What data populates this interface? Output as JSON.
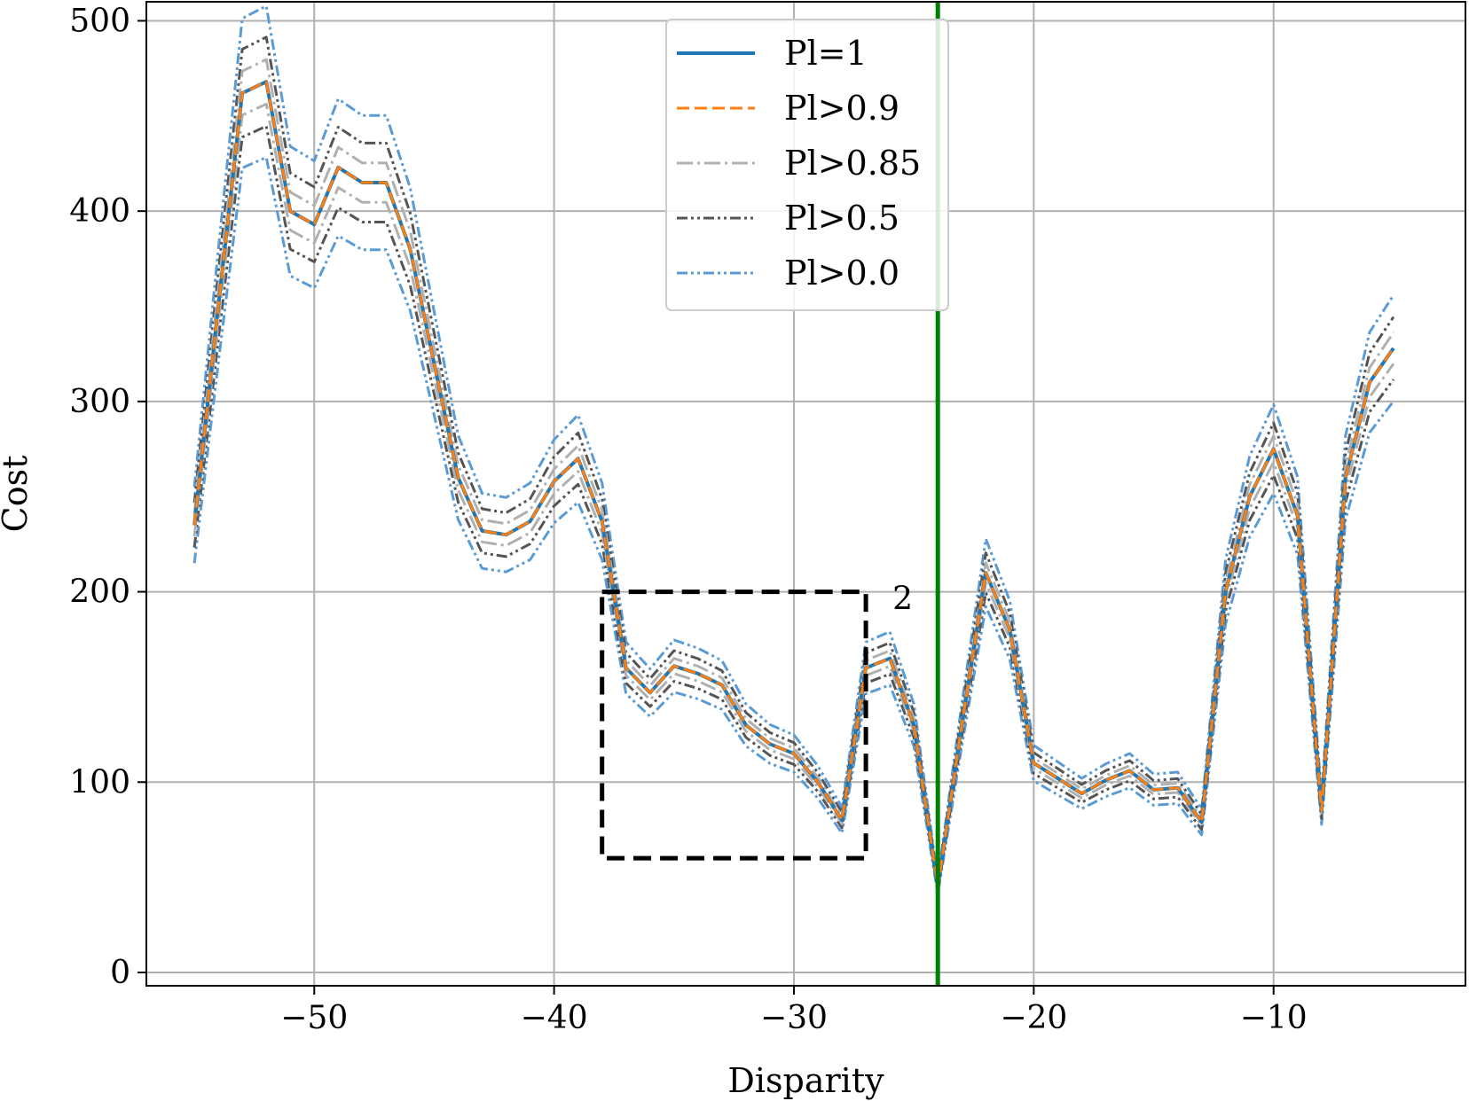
{
  "chart_data": {
    "type": "line",
    "xlabel": "Disparity",
    "ylabel": "Cost",
    "xlim": [
      -57,
      -2
    ],
    "ylim": [
      -7,
      510
    ],
    "xticks": [
      -50,
      -40,
      -30,
      -20,
      -10
    ],
    "yticks": [
      0,
      100,
      200,
      300,
      400,
      500
    ],
    "xtick_labels": [
      "−50",
      "−40",
      "−30",
      "−20",
      "−10"
    ],
    "ytick_labels": [
      "0",
      "100",
      "200",
      "300",
      "400",
      "500"
    ],
    "grid": true,
    "legend_position": "upper center",
    "x": [
      -55,
      -54,
      -53,
      -52,
      -51,
      -50,
      -49,
      -48,
      -47,
      -46,
      -45,
      -44,
      -43,
      -42,
      -41,
      -40,
      -39,
      -38,
      -37,
      -36,
      -35,
      -34,
      -33,
      -32,
      -31,
      -30,
      -29,
      -28,
      -27,
      -26,
      -25,
      -24,
      -23,
      -22,
      -21,
      -20,
      -19,
      -18,
      -17,
      -16,
      -15,
      -14,
      -13,
      -12,
      -11,
      -10,
      -9,
      -8,
      -7,
      -6,
      -5
    ],
    "series": [
      {
        "name": "Pl=1",
        "color": "#1f77b4",
        "style": "solid",
        "offset": 0
      },
      {
        "name": "Pl>0.9",
        "color": "#ff7f0e",
        "style": "dashed",
        "offset": 0
      },
      {
        "name": "Pl>0.85",
        "color": "#b0b0b0",
        "style": "dashdot",
        "offset": 0.025
      },
      {
        "name": "Pl>0.5",
        "color": "#555555",
        "style": "dashdotdot",
        "offset": 0.05
      },
      {
        "name": "Pl>0.0",
        "color": "#5b9bd5",
        "style": "dashdotdot",
        "offset": 0.085
      }
    ],
    "base_values": [
      235,
      350,
      462,
      468,
      400,
      393,
      423,
      415,
      415,
      380,
      320,
      260,
      232,
      230,
      237,
      258,
      270,
      237,
      160,
      147,
      161,
      157,
      151,
      130,
      120,
      115,
      100,
      80,
      160,
      165,
      130,
      45,
      130,
      210,
      180,
      110,
      102,
      94,
      101,
      106,
      96,
      97,
      79,
      200,
      250,
      275,
      240,
      85,
      260,
      310,
      328
    ],
    "annotations": {
      "vline": {
        "x": -24,
        "color": "#008000"
      },
      "box": {
        "x0": -38,
        "x1": -27,
        "y0": 60,
        "y1": 200,
        "label": "2"
      }
    }
  }
}
